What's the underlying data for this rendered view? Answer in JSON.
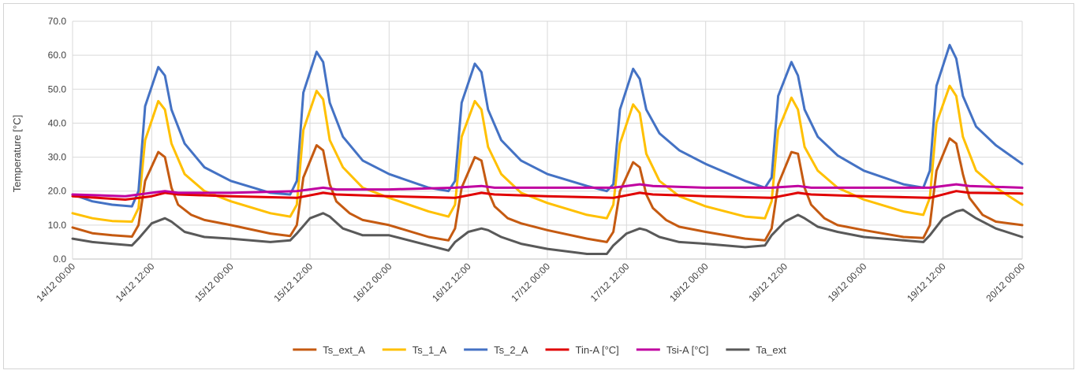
{
  "chart_data": {
    "type": "line",
    "title": "",
    "xlabel": "",
    "ylabel": "Temperature [°C]",
    "ylim": [
      0,
      70
    ],
    "y_ticks": [
      "0.0",
      "10.0",
      "20.0",
      "30.0",
      "40.0",
      "50.0",
      "60.0",
      "70.0"
    ],
    "x_ticks": [
      "14/12 00:00",
      "14/12 12:00",
      "15/12 00:00",
      "15/12 12:00",
      "16/12 00:00",
      "16/12 12:00",
      "17/12 00:00",
      "17/12 12:00",
      "18/12 00:00",
      "18/12 12:00",
      "19/12 00:00",
      "19/12 12:00",
      "20/12 00:00"
    ],
    "xlim_hours": [
      0,
      144
    ],
    "grid": true,
    "legend": "bottom",
    "series": [
      {
        "name": "Ts_ext_A",
        "color": "#c55a11",
        "x": [
          0,
          3,
          6,
          9,
          10,
          11,
          13,
          14,
          15,
          16,
          18,
          20,
          24,
          30,
          33,
          34,
          35,
          37,
          38,
          39,
          40,
          42,
          44,
          48,
          54,
          57,
          58,
          59,
          61,
          62,
          63,
          64,
          66,
          68,
          72,
          78,
          81,
          82,
          83,
          85,
          86,
          87,
          88,
          90,
          92,
          96,
          102,
          105,
          106,
          107,
          109,
          110,
          111,
          112,
          114,
          116,
          120,
          126,
          129,
          130,
          131,
          133,
          134,
          135,
          136,
          138,
          140,
          144
        ],
        "y": [
          9.3,
          7.6,
          7,
          6.6,
          10,
          23,
          31.5,
          30,
          21,
          16,
          13,
          11.5,
          10,
          7.5,
          6.8,
          10,
          24,
          33.5,
          32,
          22,
          17,
          13.5,
          11.5,
          10,
          6.5,
          5.5,
          9,
          21,
          30,
          29,
          20,
          15.5,
          12,
          10.5,
          8.5,
          6,
          5,
          8,
          20,
          28.5,
          27,
          19,
          15,
          11.5,
          9.5,
          8,
          6,
          5.5,
          9,
          22,
          31.5,
          31,
          21,
          16,
          12,
          10,
          8.5,
          6.5,
          6.2,
          10,
          26,
          35.5,
          34,
          25,
          18,
          13,
          11,
          10
        ]
      },
      {
        "name": "Ts_1_A",
        "color": "#ffc000",
        "x": [
          0,
          3,
          6,
          9,
          10,
          11,
          13,
          14,
          15,
          17,
          20,
          24,
          30,
          33,
          34,
          35,
          37,
          38,
          39,
          41,
          44,
          48,
          54,
          57,
          58,
          59,
          61,
          62,
          63,
          65,
          68,
          72,
          78,
          81,
          82,
          83,
          85,
          86,
          87,
          89,
          92,
          96,
          102,
          105,
          106,
          107,
          109,
          110,
          111,
          113,
          116,
          120,
          126,
          129,
          130,
          131,
          133,
          134,
          135,
          137,
          140,
          144
        ],
        "y": [
          13.5,
          12,
          11.2,
          11,
          15,
          35,
          46.5,
          44,
          34,
          25,
          20,
          17,
          13.5,
          12.5,
          16,
          38,
          49.5,
          47,
          35,
          27,
          21,
          18,
          14,
          12.5,
          16,
          36,
          46.5,
          44,
          33,
          25,
          19.5,
          16.5,
          13,
          12,
          16,
          34,
          45.5,
          43,
          31,
          23,
          18.5,
          15.5,
          12.5,
          12,
          17,
          38,
          47.5,
          44,
          33,
          26,
          21,
          17.5,
          14,
          13,
          18,
          40,
          51,
          48,
          36,
          26,
          21,
          16
        ]
      },
      {
        "name": "Ts_2_A",
        "color": "#4472c4",
        "x": [
          0,
          3,
          6,
          9,
          10,
          11,
          13,
          14,
          15,
          17,
          20,
          24,
          30,
          33,
          34,
          35,
          37,
          38,
          39,
          41,
          44,
          48,
          54,
          57,
          58,
          59,
          61,
          62,
          63,
          65,
          68,
          72,
          78,
          81,
          82,
          83,
          85,
          86,
          87,
          89,
          92,
          96,
          102,
          105,
          106,
          107,
          109,
          110,
          111,
          113,
          116,
          120,
          126,
          129,
          130,
          131,
          133,
          134,
          135,
          137,
          140,
          144
        ],
        "y": [
          19,
          17,
          16,
          15.5,
          20,
          45,
          56.5,
          54,
          44,
          34,
          27,
          23,
          19.5,
          19,
          23,
          49,
          61,
          58,
          46,
          36,
          29,
          25,
          21,
          20,
          23,
          46,
          57.5,
          55,
          44,
          35,
          29,
          25,
          21.5,
          20,
          22,
          44,
          56,
          53,
          44,
          37,
          32,
          28,
          23,
          21,
          24,
          48,
          58,
          54,
          44,
          36,
          30.5,
          26,
          22,
          21,
          26,
          51,
          63,
          59,
          48,
          39,
          33.5,
          28
        ]
      },
      {
        "name": "Tin-A [°C]",
        "color": "#e00000",
        "x": [
          0,
          8,
          12,
          14,
          16,
          24,
          34,
          38,
          40,
          48,
          58,
          62,
          64,
          72,
          82,
          86,
          88,
          96,
          106,
          110,
          112,
          120,
          130,
          134,
          136,
          144
        ],
        "y": [
          18.5,
          17.5,
          18.5,
          19.5,
          19,
          18.5,
          18,
          19.5,
          19,
          18.5,
          18,
          19.5,
          19,
          18.5,
          18,
          19.5,
          19,
          18.5,
          18,
          19.5,
          19,
          18.5,
          18,
          20,
          19.5,
          19.3
        ]
      },
      {
        "name": "Tsi-A [°C]",
        "color": "#c000a0",
        "x": [
          0,
          8,
          12,
          14,
          16,
          24,
          34,
          38,
          40,
          48,
          58,
          62,
          64,
          72,
          82,
          86,
          88,
          96,
          106,
          110,
          112,
          120,
          130,
          134,
          136,
          144
        ],
        "y": [
          19,
          18.5,
          19.5,
          20,
          19.5,
          19.5,
          20,
          21,
          20.5,
          20.5,
          21,
          21.5,
          21,
          21,
          21,
          22,
          21.5,
          21,
          21,
          21.5,
          21,
          21,
          21,
          22,
          21.5,
          21
        ]
      },
      {
        "name": "Ta_ext",
        "color": "#595959",
        "x": [
          0,
          3,
          6,
          9,
          10,
          12,
          14,
          15,
          17,
          20,
          24,
          30,
          33,
          34,
          36,
          38,
          39,
          41,
          44,
          48,
          54,
          57,
          58,
          60,
          62,
          63,
          65,
          68,
          72,
          78,
          81,
          82,
          84,
          86,
          87,
          89,
          92,
          96,
          102,
          105,
          106,
          108,
          110,
          111,
          113,
          116,
          120,
          126,
          129,
          130,
          132,
          134,
          135,
          137,
          140,
          144
        ],
        "y": [
          6,
          5,
          4.5,
          4,
          6,
          10.5,
          12,
          11,
          8,
          6.5,
          6,
          5,
          5.5,
          7.5,
          12,
          13.5,
          12.5,
          9,
          7,
          7,
          4,
          2.5,
          5,
          8,
          9,
          8.5,
          6.5,
          4.5,
          3,
          1.5,
          1.5,
          4,
          7.5,
          9,
          8.5,
          6.5,
          5,
          4.5,
          3.5,
          4,
          7,
          11,
          13,
          12,
          9.5,
          8,
          6.5,
          5.5,
          5,
          7,
          12,
          14,
          14.5,
          12,
          9,
          6.5
        ]
      }
    ]
  }
}
